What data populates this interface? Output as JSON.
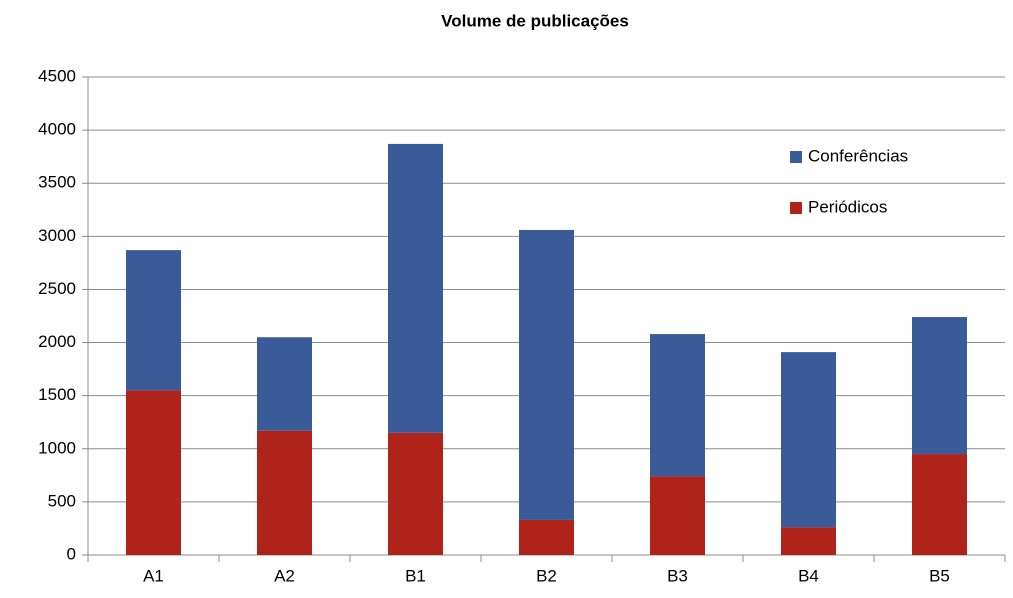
{
  "chart_data": {
    "type": "stacked_bar",
    "title": "Volume  de publicações",
    "categories": [
      "A1",
      "A2",
      "B1",
      "B2",
      "B3",
      "B4",
      "B5"
    ],
    "series": [
      {
        "name": "Periódicos",
        "color": "#b0231a",
        "values": [
          1550,
          1170,
          1150,
          330,
          740,
          260,
          950
        ]
      },
      {
        "name": "Conferências",
        "color": "#3a5a98",
        "values": [
          1320,
          880,
          2720,
          2730,
          1340,
          1650,
          1290
        ]
      }
    ],
    "ylim": [
      0,
      4500
    ],
    "yticks": [
      0,
      500,
      1000,
      1500,
      2000,
      2500,
      3000,
      3500,
      4000,
      4500
    ],
    "grid": true,
    "legend": "right"
  }
}
